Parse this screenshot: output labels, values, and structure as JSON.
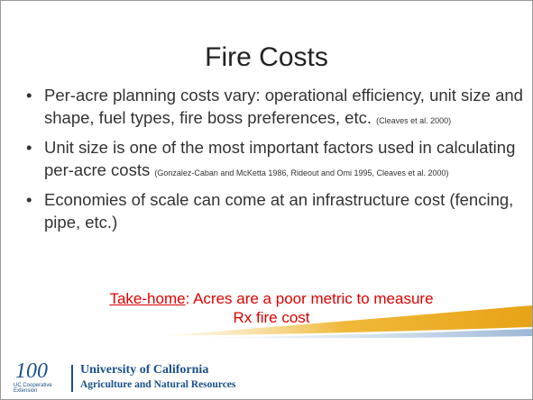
{
  "title": "Fire Costs",
  "bullets": [
    {
      "text": "Per-acre planning costs vary: operational efficiency, unit size and shape, fuel types, fire boss preferences, etc.",
      "citation": "(Cleaves et al. 2000)"
    },
    {
      "text": "Unit size is one of the most important factors used in calculating per-acre costs",
      "citation": "(Gonzalez-Caban and McKetta 1986, Rideout and Omi 1995, Cleaves et al. 2000)"
    },
    {
      "text": "Economies of scale can come at an infrastructure cost (fencing, pipe, etc.)"
    }
  ],
  "take_home": {
    "label": "Take-home",
    "text": ": Acres are a poor metric to measure Rx fire cost"
  },
  "footer": {
    "logo_number": "100",
    "logo_text": "UC Cooperative Extension",
    "university": "University of California",
    "division": "Agriculture and Natural Resources"
  }
}
